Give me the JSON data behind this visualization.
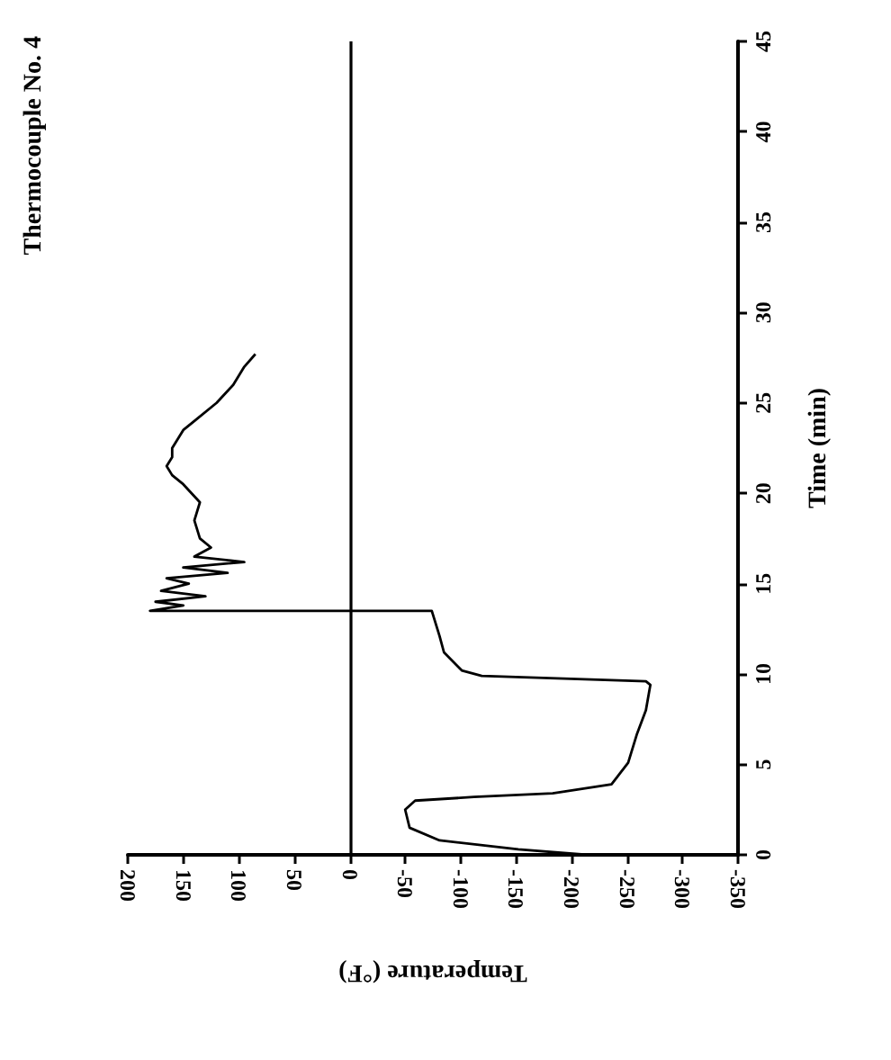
{
  "chart_data": {
    "type": "line",
    "title": "Thermocouple No. 4",
    "xlabel": "Temperature (°F)",
    "ylabel": "Time (min)",
    "x": [
      -214,
      -152,
      -81,
      -54,
      -50,
      -59,
      -112,
      -183,
      -236,
      -251,
      -259,
      -267,
      -271,
      -267,
      -119,
      -101,
      -85,
      -81,
      -74,
      180,
      150,
      175,
      130,
      170,
      145,
      165,
      110,
      150,
      95,
      140,
      125,
      135,
      140,
      135,
      150,
      160,
      165,
      160,
      160,
      155,
      150,
      140,
      120,
      105,
      95,
      85
    ],
    "series": [
      {
        "color": "#000000",
        "values": [
          0,
          0.3,
          0.8,
          1.5,
          2.5,
          3,
          3.2,
          3.4,
          3.9,
          5.1,
          6.7,
          8,
          9.4,
          9.6,
          9.9,
          10.2,
          11.2,
          12.1,
          13.5,
          13.5,
          13.8,
          14,
          14.3,
          14.6,
          15,
          15.3,
          15.6,
          15.9,
          16.2,
          16.5,
          17,
          17.5,
          18.5,
          19.5,
          20.5,
          21,
          21.5,
          22,
          22.5,
          23,
          23.5,
          24,
          25,
          26,
          27,
          27.7
        ]
      }
    ],
    "xlim": [
      200,
      -350
    ],
    "xticks": [
      200,
      150,
      100,
      50,
      0,
      -50,
      -100,
      -150,
      -200,
      -250,
      -300,
      -350
    ],
    "ylim": [
      0,
      45
    ],
    "yticks": [
      0,
      5,
      10,
      15,
      20,
      25,
      30,
      35,
      40,
      45
    ],
    "ref_lines": [
      {
        "axis": "x",
        "value": 0,
        "color": "#000000"
      }
    ],
    "grid": false,
    "marker": "none",
    "line_style": "solid"
  }
}
